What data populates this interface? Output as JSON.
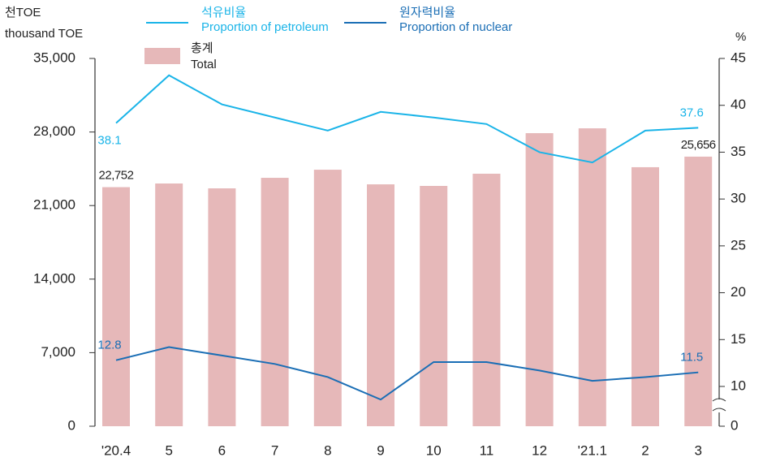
{
  "chart_data": {
    "type": "bar",
    "y_label_local": "천TOE",
    "y_label": "thousand TOE",
    "y2_label": "%",
    "categories": [
      "'20.4",
      "5",
      "6",
      "7",
      "8",
      "9",
      "10",
      "11",
      "12",
      "'21.1",
      "2",
      "3"
    ],
    "series": [
      {
        "name_local": "총계",
        "name": "Total",
        "color": "#e6b8b9",
        "type": "bar",
        "values": [
          22752,
          23100,
          22640,
          23640,
          24410,
          23020,
          22870,
          24030,
          27890,
          28350,
          24650,
          25656
        ],
        "value_labels": [
          "22,752",
          null,
          null,
          null,
          null,
          null,
          null,
          null,
          null,
          null,
          null,
          "25,656"
        ]
      },
      {
        "name_local": "석유비율",
        "name": "Proportion of petroleum",
        "color": "#1ab4e8",
        "type": "line",
        "axis": "y2",
        "values": [
          38.1,
          43.2,
          40.1,
          38.7,
          37.3,
          39.3,
          38.7,
          38.0,
          35.0,
          33.9,
          37.3,
          37.6
        ],
        "value_labels": [
          "38.1",
          null,
          null,
          null,
          null,
          null,
          null,
          null,
          null,
          null,
          null,
          "37.6"
        ]
      },
      {
        "name_local": "원자력비율",
        "name": "Proportion of nuclear",
        "color": "#1a6eb5",
        "type": "line",
        "axis": "y2",
        "values": [
          12.8,
          14.2,
          13.3,
          12.4,
          11.0,
          6.7,
          12.6,
          12.6,
          11.7,
          10.6,
          11.0,
          11.5
        ],
        "value_labels": [
          "12.8",
          null,
          null,
          null,
          null,
          null,
          null,
          null,
          null,
          null,
          null,
          "11.5"
        ]
      }
    ],
    "ylim": [
      0,
      35000
    ],
    "yticks": [
      0,
      {
        "value": 7000,
        "label": "7,000"
      },
      {
        "value": 14000,
        "label": "14,000"
      },
      {
        "value": 21000,
        "label": "21,000"
      },
      {
        "value": 28000,
        "label": "28,000"
      },
      {
        "value": 35000,
        "label": "35,000"
      }
    ],
    "y2lim": [
      0,
      45
    ],
    "y2ticks": [
      0,
      10,
      15,
      20,
      25,
      30,
      35,
      40,
      45
    ],
    "y2_axis_break": true,
    "grid": false
  }
}
